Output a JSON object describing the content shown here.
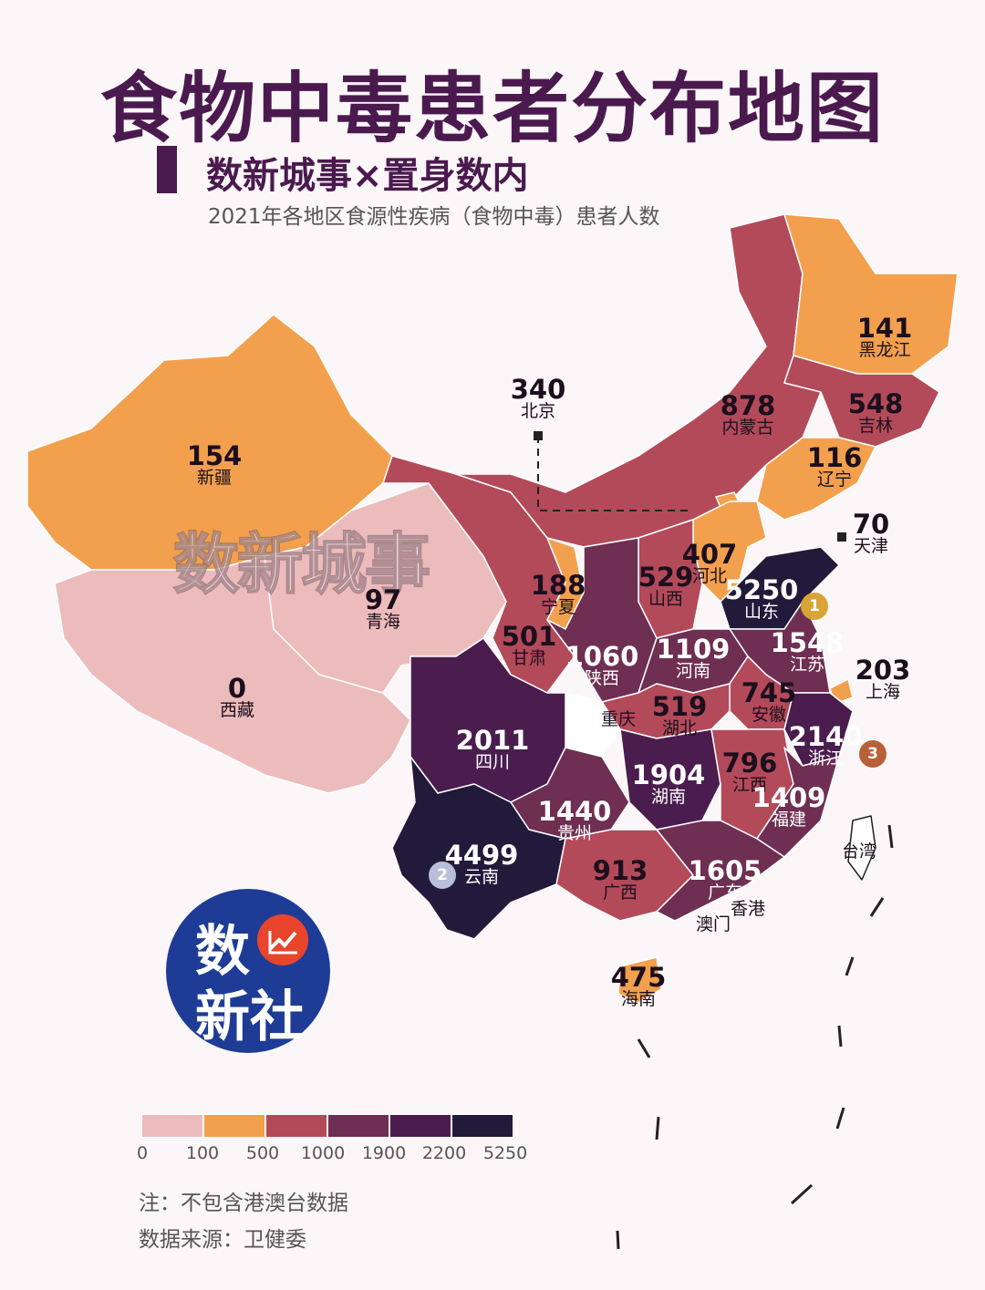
{
  "title": "食物中毒患者分布地图",
  "subtitle": "数新城事×置身数内",
  "caption": "2021年各地区食源性疾病（食物中毒）患者人数",
  "watermark": "数新城事",
  "logo": {
    "line1": "数",
    "line2": "新社",
    "badge_icon": "chart-line-icon"
  },
  "colors": {
    "bin0": "#ecbcbc",
    "bin1": "#f2a04e",
    "bin2": "#b34a5a",
    "bin3": "#6e2f52",
    "bin4": "#4a1d4e",
    "bin5": "#221a3a"
  },
  "legend": {
    "ticks": [
      "0",
      "100",
      "500",
      "1000",
      "1900",
      "2200",
      "5250"
    ]
  },
  "notes": {
    "note1": "注：不包含港澳台数据",
    "note2": "数据来源：卫健委"
  },
  "medals": [
    "1",
    "2",
    "3"
  ],
  "chart_data": {
    "type": "choropleth",
    "title": "食物中毒患者分布地图",
    "subtitle": "2021年各地区食源性疾病（食物中毒）患者人数",
    "bins": [
      0,
      100,
      500,
      1000,
      1900,
      2200,
      5250
    ],
    "regions": [
      {
        "name": "新疆",
        "value": 154
      },
      {
        "name": "西藏",
        "value": 0
      },
      {
        "name": "青海",
        "value": 97
      },
      {
        "name": "甘肃",
        "value": 501
      },
      {
        "name": "宁夏",
        "value": 188
      },
      {
        "name": "内蒙古",
        "value": 878
      },
      {
        "name": "黑龙江",
        "value": 141
      },
      {
        "name": "吉林",
        "value": 548
      },
      {
        "name": "辽宁",
        "value": 116
      },
      {
        "name": "北京",
        "value": 340
      },
      {
        "name": "天津",
        "value": 70
      },
      {
        "name": "河北",
        "value": 407
      },
      {
        "name": "山西",
        "value": 529
      },
      {
        "name": "山东",
        "value": 5250
      },
      {
        "name": "陕西",
        "value": 1060
      },
      {
        "name": "河南",
        "value": 1109
      },
      {
        "name": "江苏",
        "value": 1548
      },
      {
        "name": "上海",
        "value": 203
      },
      {
        "name": "安徽",
        "value": 745
      },
      {
        "name": "浙江",
        "value": 2140
      },
      {
        "name": "湖北",
        "value": 519
      },
      {
        "name": "重庆",
        "value": null
      },
      {
        "name": "四川",
        "value": 2011
      },
      {
        "name": "湖南",
        "value": 1904
      },
      {
        "name": "江西",
        "value": 796
      },
      {
        "name": "福建",
        "value": 1409
      },
      {
        "name": "贵州",
        "value": 1440
      },
      {
        "name": "云南",
        "value": 4499
      },
      {
        "name": "广西",
        "value": 913
      },
      {
        "name": "广东",
        "value": 1605
      },
      {
        "name": "海南",
        "value": 475
      },
      {
        "name": "香港",
        "value": null
      },
      {
        "name": "澳门",
        "value": null
      },
      {
        "name": "台湾",
        "value": null
      }
    ]
  }
}
